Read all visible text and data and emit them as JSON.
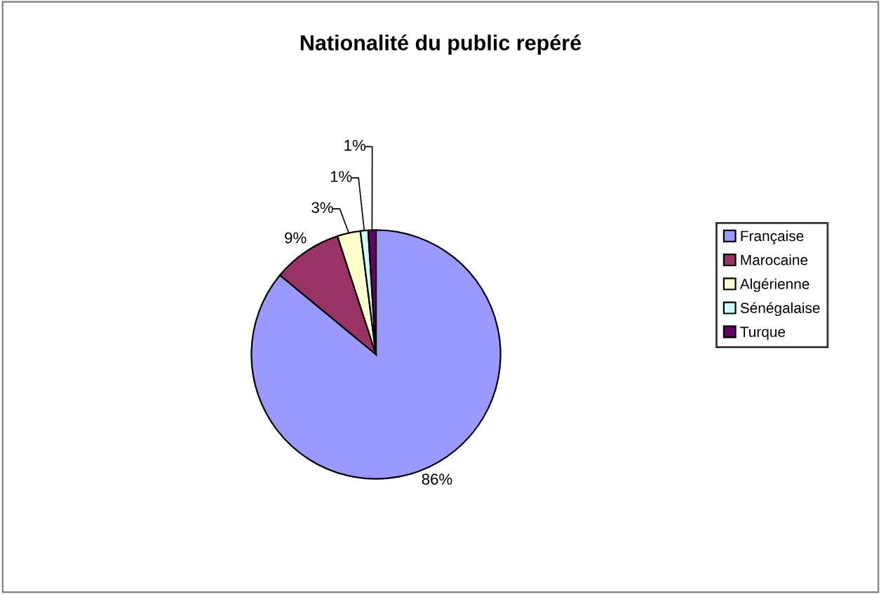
{
  "chart_data": {
    "type": "pie",
    "title": "Nationalité du public repéré",
    "categories": [
      "Française",
      "Marocaine",
      "Algérienne",
      "Sénégalaise",
      "Turque"
    ],
    "values": [
      86,
      9,
      3,
      1,
      1
    ],
    "value_labels": [
      "86%",
      "9%",
      "3%",
      "1%",
      "1%"
    ],
    "colors": [
      "#9999ff",
      "#993366",
      "#ffffcc",
      "#ccffff",
      "#660066"
    ],
    "legend": "right"
  }
}
